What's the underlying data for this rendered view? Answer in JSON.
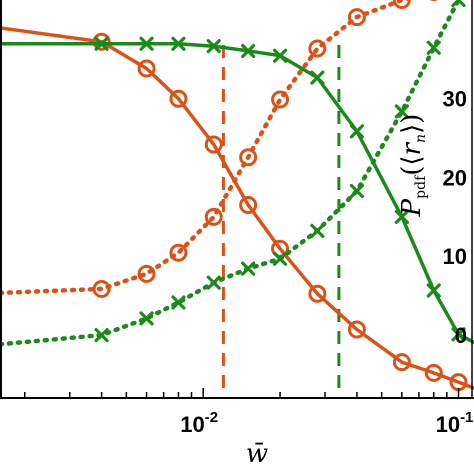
{
  "chart_data": {
    "type": "line",
    "xscale": "log",
    "xlim": [
      0.0016,
      0.115
    ],
    "ylim_left": [
      0,
      1
    ],
    "ylim_right": [
      -8.0,
      42.5
    ],
    "xlabel": "w̄",
    "ylabel_right": "P_pdf(⟨r_n⟩)",
    "x_tick_labels": [
      {
        "value": 0.01,
        "base": "10",
        "exp": "-2"
      },
      {
        "value": 0.1,
        "base": "10",
        "exp": "-1"
      }
    ],
    "y_right_ticks": [
      {
        "value": 30,
        "label": "30"
      },
      {
        "value": 20,
        "label": "20"
      },
      {
        "value": 10,
        "label": "10"
      },
      {
        "value": 0,
        "label": "0"
      }
    ],
    "series": [
      {
        "style": "solid",
        "marker": "circle",
        "color": "#D95319",
        "x": [
          0.0016,
          0.004,
          0.006,
          0.008,
          0.011,
          0.015,
          0.02,
          0.028,
          0.04,
          0.06,
          0.08,
          0.1,
          0.115
        ],
        "y": [
          0.93,
          0.895,
          0.828,
          0.752,
          0.637,
          0.485,
          0.375,
          0.262,
          0.172,
          0.09,
          0.063,
          0.04,
          0.025
        ]
      },
      {
        "style": "dotted",
        "marker": "circle",
        "color": "#D95319",
        "x": [
          0.0016,
          0.004,
          0.006,
          0.008,
          0.011,
          0.015,
          0.02,
          0.028,
          0.04,
          0.06,
          0.08,
          0.1
        ],
        "y": [
          0.264,
          0.274,
          0.312,
          0.365,
          0.455,
          0.605,
          0.75,
          0.878,
          0.957,
          1.0,
          1.02,
          1.04
        ]
      },
      {
        "style": "solid",
        "marker": "x",
        "color": "#1B8A1B",
        "x": [
          0.0016,
          0.004,
          0.006,
          0.008,
          0.011,
          0.015,
          0.02,
          0.028,
          0.04,
          0.06,
          0.08,
          0.1,
          0.115
        ],
        "y": [
          0.89,
          0.89,
          0.89,
          0.89,
          0.884,
          0.872,
          0.86,
          0.805,
          0.67,
          0.455,
          0.27,
          0.16,
          0.14
        ]
      },
      {
        "style": "dotted",
        "marker": "x",
        "color": "#1B8A1B",
        "x": [
          0.0016,
          0.004,
          0.006,
          0.008,
          0.011,
          0.015,
          0.02,
          0.028,
          0.04,
          0.06,
          0.08,
          0.1,
          0.115
        ],
        "y": [
          0.135,
          0.158,
          0.2,
          0.24,
          0.29,
          0.325,
          0.35,
          0.42,
          0.52,
          0.72,
          0.88,
          1.0,
          1.05
        ]
      }
    ],
    "vlines": [
      {
        "x": 0.012,
        "style": "dashed",
        "color": "#D95319"
      },
      {
        "x": 0.034,
        "style": "dashed",
        "color": "#1B8A1B"
      }
    ]
  }
}
